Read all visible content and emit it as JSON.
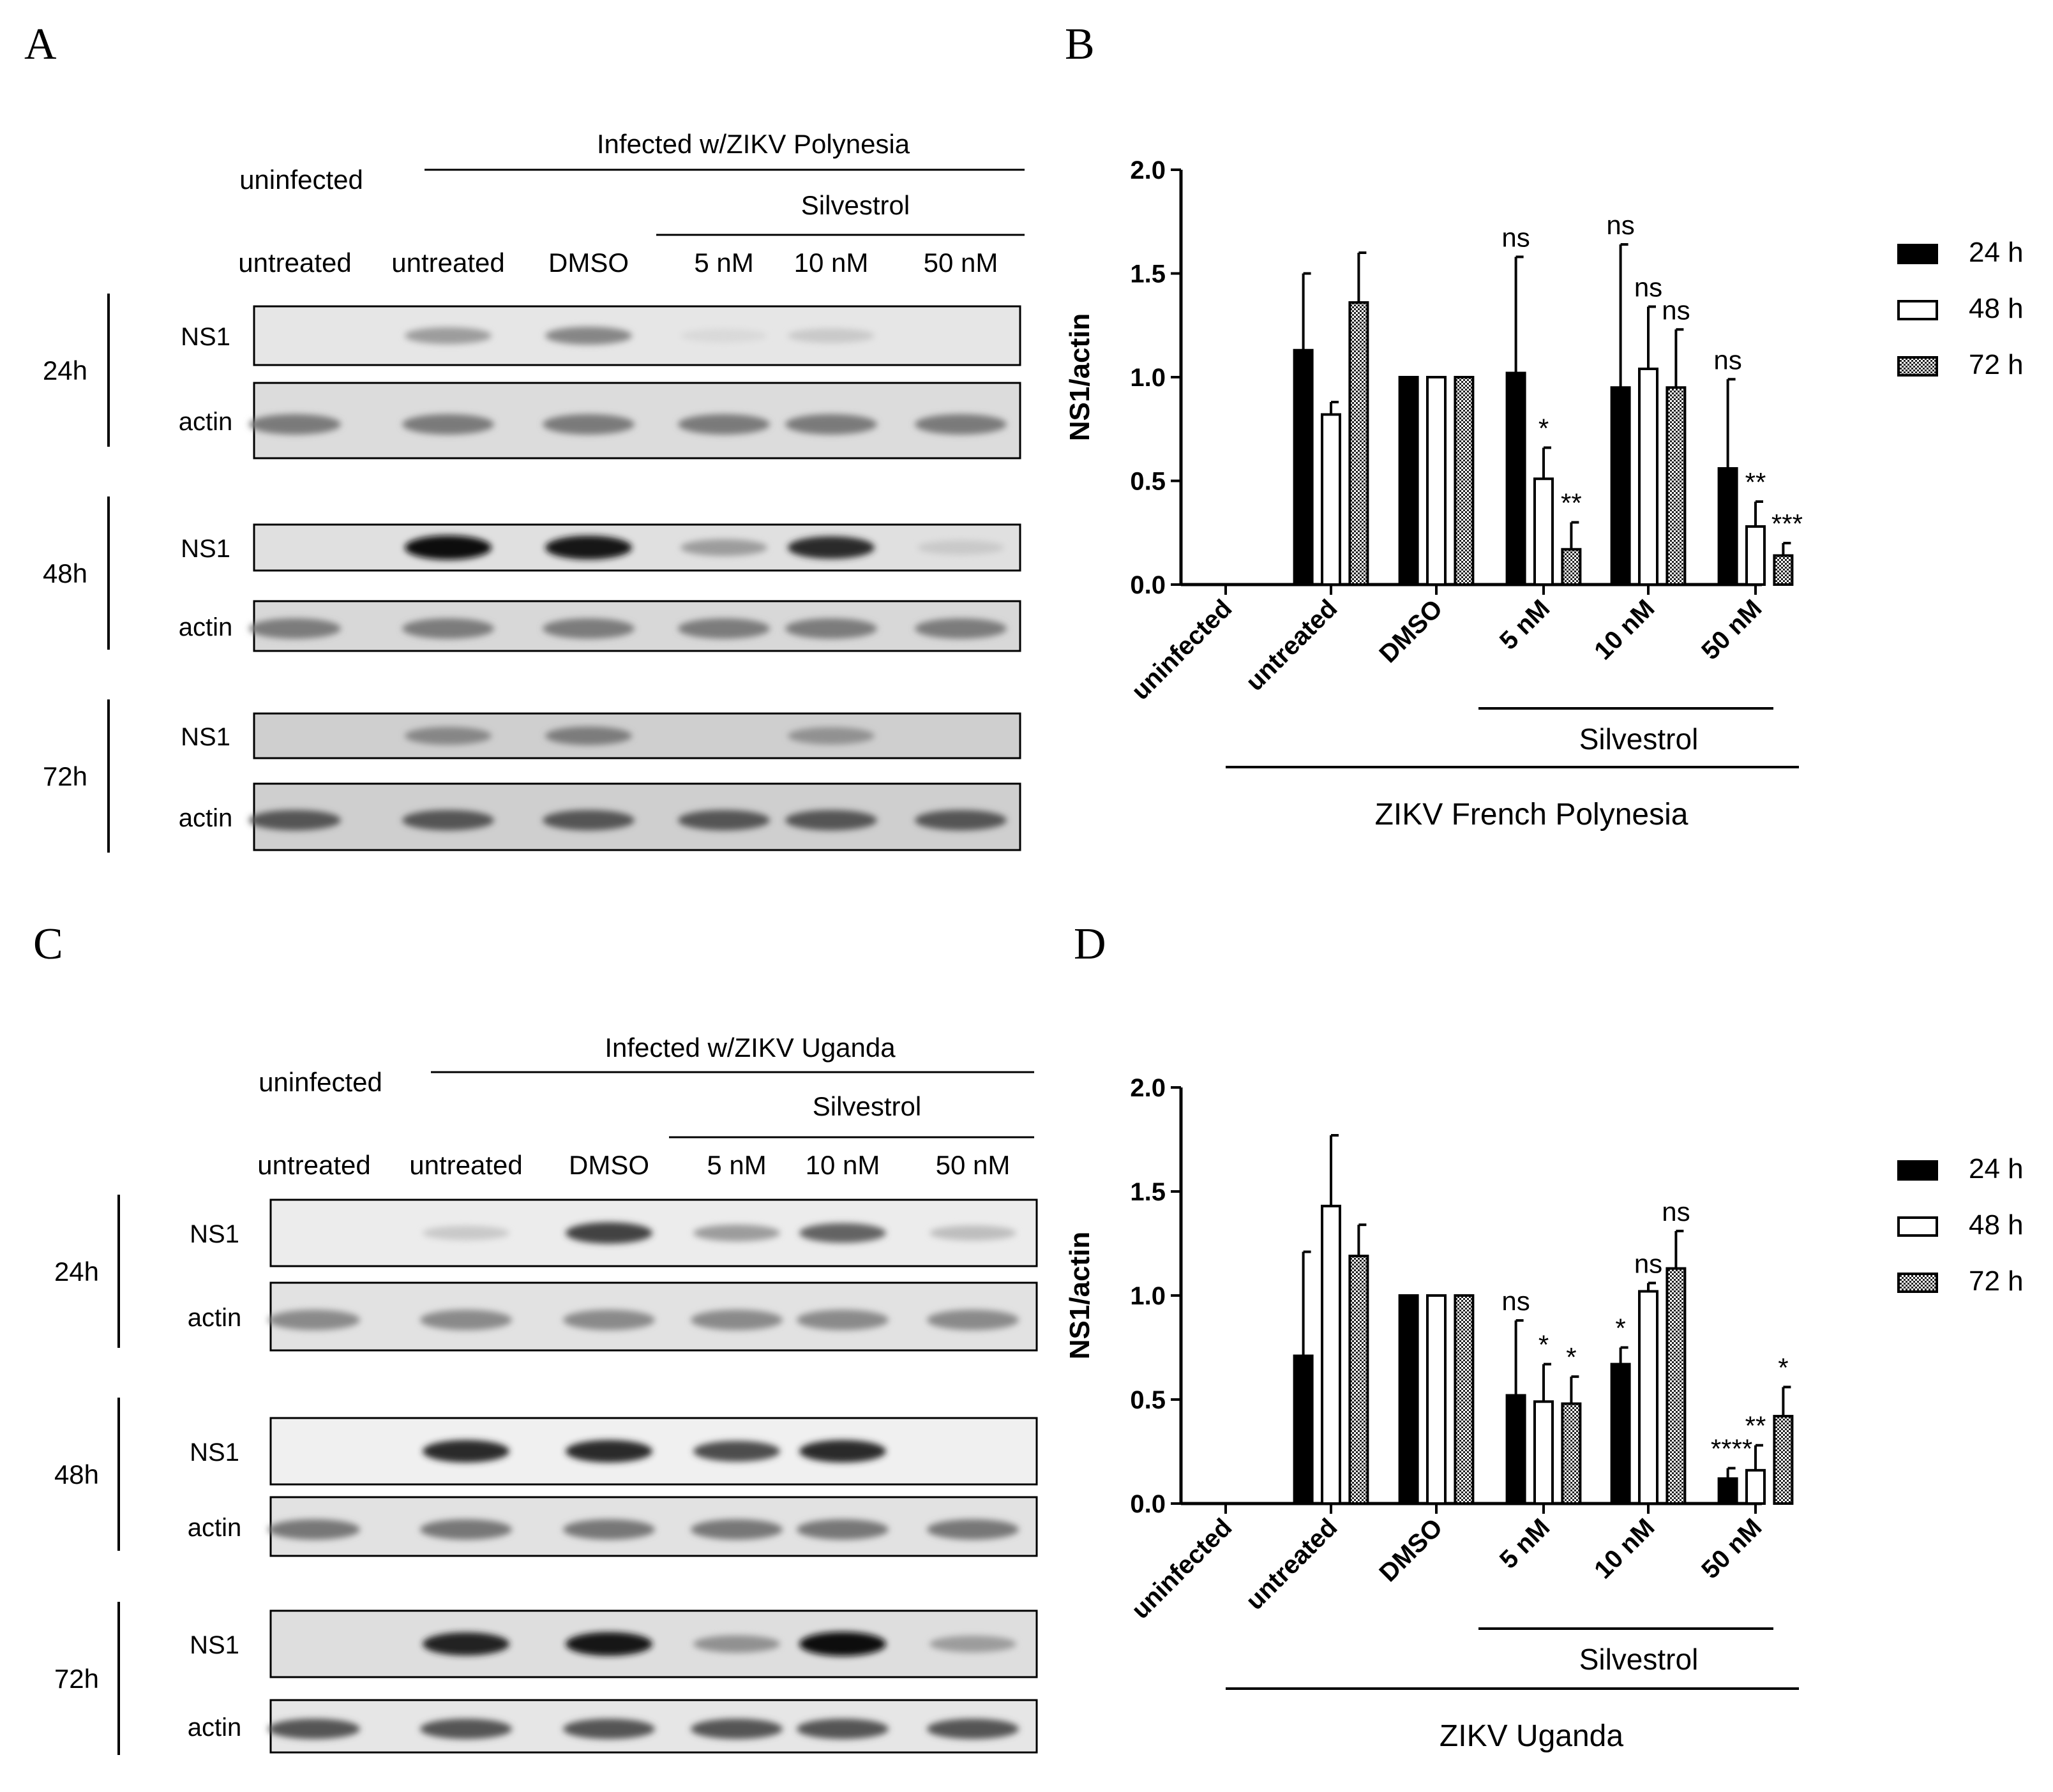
{
  "panels": {
    "A": {
      "letter": "A",
      "infected_label": "Infected w/ZIKV Polynesia",
      "uninfected_label": "uninfected",
      "silvestrol_label": "Silvestrol",
      "lanes": [
        "untreated",
        "untreated",
        "DMSO",
        "5 nM",
        "10 nM",
        "50 nM"
      ],
      "timepoints": [
        {
          "time": "24h",
          "row1": "NS1",
          "row2": "actin",
          "ns1_intensity": [
            0.0,
            0.35,
            0.45,
            0.08,
            0.15,
            0.0
          ]
        },
        {
          "time": "48h",
          "row1": "NS1",
          "row2": "actin",
          "ns1_intensity": [
            0.0,
            1.0,
            0.95,
            0.35,
            0.85,
            0.15
          ]
        },
        {
          "time": "72h",
          "row1": "NS1",
          "row2": "actin",
          "ns1_intensity": [
            0.0,
            0.45,
            0.5,
            0.0,
            0.4,
            0.0
          ]
        }
      ]
    },
    "C": {
      "letter": "C",
      "infected_label": "Infected w/ZIKV Uganda",
      "uninfected_label": "uninfected",
      "silvestrol_label": "Silvestrol",
      "lanes": [
        "untreated",
        "untreated",
        "DMSO",
        "5 nM",
        "10 nM",
        "50 nM"
      ],
      "timepoints": [
        {
          "time": "24h",
          "row1": "NS1",
          "row2": "actin",
          "ns1_intensity": [
            0.0,
            0.15,
            0.75,
            0.35,
            0.6,
            0.2
          ]
        },
        {
          "time": "48h",
          "row1": "NS1",
          "row2": "actin",
          "ns1_intensity": [
            0.0,
            0.85,
            0.85,
            0.7,
            0.85,
            0.0
          ]
        },
        {
          "time": "72h",
          "row1": "NS1",
          "row2": "actin",
          "ns1_intensity": [
            0.0,
            0.9,
            0.95,
            0.4,
            1.0,
            0.35
          ]
        }
      ]
    },
    "B": {
      "letter": "B"
    },
    "D": {
      "letter": "D"
    }
  },
  "chart_data": [
    {
      "type": "bar",
      "panel": "B",
      "ylabel": "NS1/actin",
      "ylim": [
        0,
        2.0
      ],
      "yticks": [
        "0.0",
        "0.5",
        "1.0",
        "1.5",
        "2.0"
      ],
      "categories": [
        "uninfected",
        "untreated",
        "DMSO",
        "5 nM",
        "10 nM",
        "50 nM"
      ],
      "group_label": "Silvestrol",
      "xlabel": "ZIKV French Polynesia",
      "series": [
        {
          "name": "24 h",
          "values": [
            0,
            1.13,
            1.0,
            1.02,
            0.95,
            0.56
          ],
          "errors": [
            0,
            0.37,
            0,
            0.56,
            0.69,
            0.43
          ]
        },
        {
          "name": "48 h",
          "values": [
            0,
            0.82,
            1.0,
            0.51,
            1.04,
            0.28
          ],
          "errors": [
            0,
            0.06,
            0,
            0.15,
            0.3,
            0.12
          ]
        },
        {
          "name": "72 h",
          "values": [
            0,
            1.36,
            1.0,
            0.17,
            0.95,
            0.14
          ],
          "errors": [
            0,
            0.24,
            0,
            0.13,
            0.28,
            0.06
          ]
        }
      ],
      "annotations": [
        [
          "",
          "",
          "",
          ""
        ],
        [
          "",
          "",
          "",
          ""
        ],
        [
          "",
          "",
          "",
          ""
        ],
        [
          "ns",
          "*",
          "**"
        ],
        [
          "ns",
          "ns",
          "ns"
        ],
        [
          "ns",
          "**",
          "***"
        ]
      ],
      "legend": {
        "position": "right",
        "entries": [
          "24 h",
          "48 h",
          "72 h"
        ]
      }
    },
    {
      "type": "bar",
      "panel": "D",
      "ylabel": "NS1/actin",
      "ylim": [
        0,
        2.0
      ],
      "yticks": [
        "0.0",
        "0.5",
        "1.0",
        "1.5",
        "2.0"
      ],
      "categories": [
        "uninfected",
        "untreated",
        "DMSO",
        "5 nM",
        "10 nM",
        "50 nM"
      ],
      "group_label": "Silvestrol",
      "xlabel": "ZIKV Uganda",
      "series": [
        {
          "name": "24 h",
          "values": [
            0,
            0.71,
            1.0,
            0.52,
            0.67,
            0.12
          ],
          "errors": [
            0,
            0.5,
            0,
            0.36,
            0.08,
            0.05
          ]
        },
        {
          "name": "48 h",
          "values": [
            0,
            1.43,
            1.0,
            0.49,
            1.02,
            0.16
          ],
          "errors": [
            0,
            0.34,
            0,
            0.18,
            0.04,
            0.12
          ]
        },
        {
          "name": "72 h",
          "values": [
            0,
            1.19,
            1.0,
            0.48,
            1.13,
            0.42
          ],
          "errors": [
            0,
            0.15,
            0,
            0.13,
            0.18,
            0.14
          ]
        }
      ],
      "annotations": [
        [
          "",
          "",
          ""
        ],
        [
          "",
          "",
          ""
        ],
        [
          "",
          "",
          ""
        ],
        [
          "ns",
          "*",
          "*"
        ],
        [
          "*",
          "ns",
          "ns"
        ],
        [
          "****",
          "**",
          "*"
        ]
      ],
      "legend": {
        "position": "right",
        "entries": [
          "24 h",
          "48 h",
          "72 h"
        ]
      }
    }
  ]
}
